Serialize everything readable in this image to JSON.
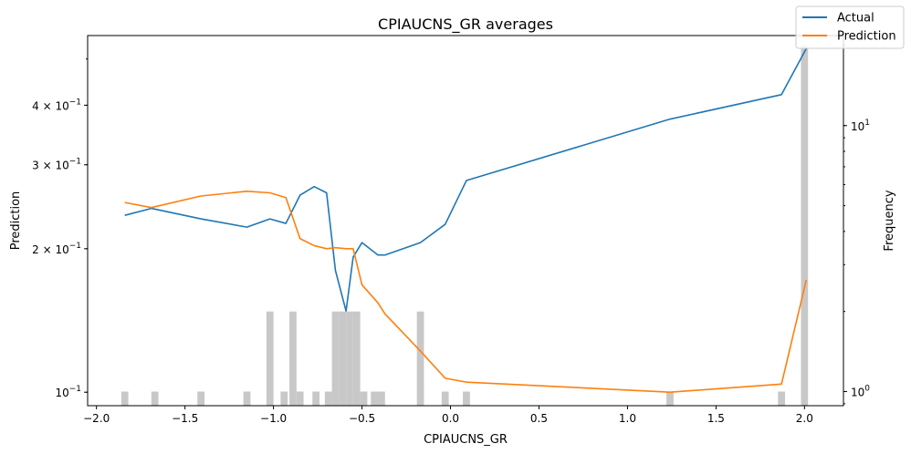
{
  "chart_data": {
    "type": "line",
    "title": "CPIAUCNS_GR averages",
    "xlabel": "CPIAUCNS_GR",
    "ylabel": "Prediction",
    "y2label": "Frequency",
    "xlim": [
      -2.05,
      2.22
    ],
    "ylim": [
      0.0937,
      0.56
    ],
    "yscale": "log",
    "y2lim": [
      0.885,
      21.8
    ],
    "y2scale": "log",
    "grid": false,
    "legend_position": "top-right",
    "x_ticks": [
      -2.0,
      -1.5,
      -1.0,
      -0.5,
      0.0,
      0.5,
      1.0,
      1.5,
      2.0
    ],
    "x_tick_labels": [
      "−2.0",
      "−1.5",
      "−1.0",
      "−0.5",
      "0.0",
      "0.5",
      "1.0",
      "1.5",
      "2.0"
    ],
    "y_ticks": [
      {
        "value": 0.1,
        "base": "10",
        "exp": "−1"
      },
      {
        "value": 0.2,
        "base": "2 × 10",
        "exp": "−1"
      },
      {
        "value": 0.3,
        "base": "3 × 10",
        "exp": "−1"
      },
      {
        "value": 0.4,
        "base": "4 × 10",
        "exp": "−1"
      }
    ],
    "y2_ticks": [
      {
        "value": 1,
        "base": "10",
        "exp": "0"
      },
      {
        "value": 10,
        "base": "10",
        "exp": "1"
      }
    ],
    "series": [
      {
        "name": "Actual",
        "color": "#1f77b4",
        "x": [
          -1.84,
          -1.69,
          -1.41,
          -1.15,
          -1.02,
          -0.93,
          -0.85,
          -0.77,
          -0.7,
          -0.65,
          -0.59,
          -0.55,
          -0.5,
          -0.41,
          -0.37,
          -0.17,
          -0.03,
          0.09,
          1.24,
          1.87,
          2.01
        ],
        "y": [
          0.235,
          0.243,
          0.231,
          0.222,
          0.231,
          0.226,
          0.259,
          0.27,
          0.262,
          0.18,
          0.148,
          0.192,
          0.206,
          0.194,
          0.194,
          0.206,
          0.225,
          0.278,
          0.374,
          0.421,
          0.526
        ]
      },
      {
        "name": "Prediction",
        "color": "#ff7f0e",
        "x": [
          -1.84,
          -1.69,
          -1.41,
          -1.15,
          -1.02,
          -0.93,
          -0.85,
          -0.77,
          -0.7,
          -0.65,
          -0.59,
          -0.55,
          -0.5,
          -0.41,
          -0.37,
          -0.17,
          -0.03,
          0.09,
          1.24,
          1.87,
          2.01
        ],
        "y": [
          0.25,
          0.244,
          0.258,
          0.264,
          0.262,
          0.256,
          0.21,
          0.203,
          0.2,
          0.201,
          0.2,
          0.2,
          0.168,
          0.154,
          0.146,
          0.122,
          0.107,
          0.105,
          0.1,
          0.104,
          0.172
        ]
      }
    ],
    "histogram": {
      "color": "#c8c8c8",
      "bin_width": 0.04,
      "x": [
        -1.84,
        -1.67,
        -1.41,
        -1.15,
        -1.02,
        -0.94,
        -0.89,
        -0.85,
        -0.76,
        -0.69,
        -0.65,
        -0.61,
        -0.57,
        -0.53,
        -0.49,
        -0.43,
        -0.39,
        -0.17,
        -0.03,
        0.09,
        1.24,
        1.87,
        2.0
      ],
      "counts": [
        1,
        1,
        1,
        1,
        2,
        1,
        2,
        1,
        1,
        1,
        2,
        2,
        2,
        2,
        1,
        1,
        1,
        2,
        1,
        1,
        1,
        1,
        20
      ]
    }
  }
}
